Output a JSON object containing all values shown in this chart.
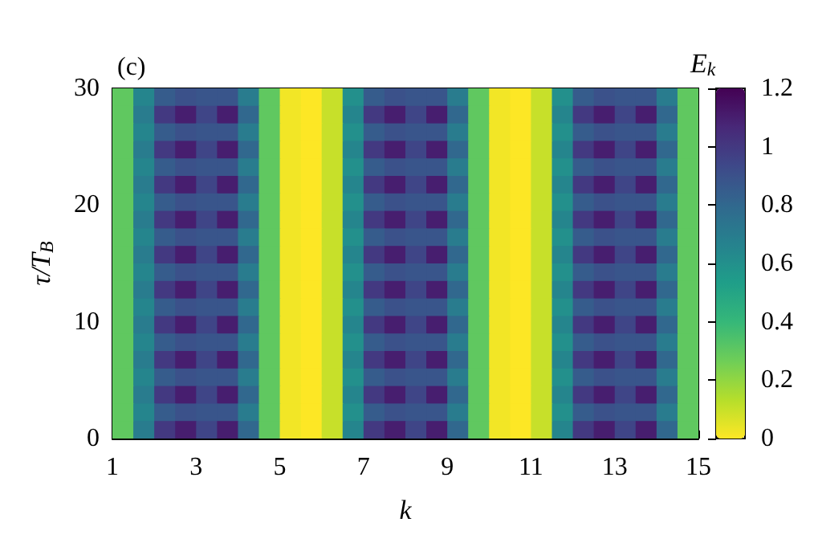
{
  "chart_data": {
    "type": "heatmap",
    "title": "(c)",
    "xlabel": "k",
    "ylabel": "τ/T$_{B}$",
    "clabel": "E$_{k}$",
    "xlim": [
      1,
      15
    ],
    "xticks": [
      1,
      3,
      5,
      7,
      9,
      11,
      13,
      15
    ],
    "ylim": [
      0,
      30
    ],
    "yticks": [
      0,
      10,
      20,
      30
    ],
    "clim": [
      0,
      1.2
    ],
    "cticks": [
      0,
      0.2,
      0.4,
      0.6,
      0.8,
      1,
      1.2
    ],
    "grid": false,
    "cells": [
      [
        0.3,
        0.65,
        0.85,
        0.9,
        0.88,
        0.88,
        0.7,
        0.3,
        0.02,
        0,
        0.1,
        0.6,
        0.85,
        0.9,
        0.88,
        0.88,
        0.7,
        0.3,
        0.02,
        0,
        0.1,
        0.6,
        0.85,
        0.9,
        0.88,
        0.88,
        0.7,
        0.3
      ],
      [
        0.3,
        0.7,
        1.0,
        1.1,
        0.95,
        1.1,
        0.8,
        0.3,
        0.02,
        0,
        0.1,
        0.65,
        1.0,
        1.1,
        0.95,
        1.1,
        0.8,
        0.3,
        0.02,
        0,
        0.1,
        0.65,
        1.0,
        1.1,
        0.95,
        1.1,
        0.8,
        0.3
      ],
      [
        0.3,
        0.65,
        0.85,
        0.9,
        0.88,
        0.88,
        0.7,
        0.3,
        0.02,
        0,
        0.1,
        0.6,
        0.85,
        0.9,
        0.88,
        0.88,
        0.7,
        0.3,
        0.02,
        0,
        0.1,
        0.6,
        0.85,
        0.9,
        0.88,
        0.88,
        0.7,
        0.3
      ],
      [
        0.3,
        0.7,
        1.0,
        1.1,
        0.95,
        1.1,
        0.8,
        0.3,
        0.02,
        0,
        0.1,
        0.65,
        1.0,
        1.1,
        0.95,
        1.1,
        0.8,
        0.3,
        0.02,
        0,
        0.1,
        0.65,
        1.0,
        1.1,
        0.95,
        1.1,
        0.8,
        0.3
      ],
      [
        0.3,
        0.65,
        0.85,
        0.9,
        0.88,
        0.88,
        0.7,
        0.3,
        0.02,
        0,
        0.1,
        0.6,
        0.85,
        0.9,
        0.88,
        0.88,
        0.7,
        0.3,
        0.02,
        0,
        0.1,
        0.6,
        0.85,
        0.9,
        0.88,
        0.88,
        0.7,
        0.3
      ],
      [
        0.3,
        0.7,
        1.0,
        1.1,
        0.95,
        1.1,
        0.8,
        0.3,
        0.02,
        0,
        0.1,
        0.65,
        1.0,
        1.1,
        0.95,
        1.1,
        0.8,
        0.3,
        0.02,
        0,
        0.1,
        0.65,
        1.0,
        1.1,
        0.95,
        1.1,
        0.8,
        0.3
      ],
      [
        0.3,
        0.65,
        0.85,
        0.9,
        0.88,
        0.88,
        0.7,
        0.3,
        0.02,
        0,
        0.1,
        0.6,
        0.85,
        0.9,
        0.88,
        0.88,
        0.7,
        0.3,
        0.02,
        0,
        0.1,
        0.6,
        0.85,
        0.9,
        0.88,
        0.88,
        0.7,
        0.3
      ],
      [
        0.3,
        0.7,
        1.0,
        1.1,
        0.95,
        1.1,
        0.8,
        0.3,
        0.02,
        0,
        0.1,
        0.65,
        1.0,
        1.1,
        0.95,
        1.1,
        0.8,
        0.3,
        0.02,
        0,
        0.1,
        0.65,
        1.0,
        1.1,
        0.95,
        1.1,
        0.8,
        0.3
      ],
      [
        0.3,
        0.65,
        0.85,
        0.9,
        0.88,
        0.88,
        0.7,
        0.3,
        0.02,
        0,
        0.1,
        0.6,
        0.85,
        0.9,
        0.88,
        0.88,
        0.7,
        0.3,
        0.02,
        0,
        0.1,
        0.6,
        0.85,
        0.9,
        0.88,
        0.88,
        0.7,
        0.3
      ],
      [
        0.3,
        0.7,
        1.0,
        1.1,
        0.95,
        1.1,
        0.8,
        0.3,
        0.02,
        0,
        0.1,
        0.65,
        1.0,
        1.1,
        0.95,
        1.1,
        0.8,
        0.3,
        0.02,
        0,
        0.1,
        0.65,
        1.0,
        1.1,
        0.95,
        1.1,
        0.8,
        0.3
      ],
      [
        0.3,
        0.65,
        0.85,
        0.9,
        0.88,
        0.88,
        0.7,
        0.3,
        0.02,
        0,
        0.1,
        0.6,
        0.85,
        0.9,
        0.88,
        0.88,
        0.7,
        0.3,
        0.02,
        0,
        0.1,
        0.6,
        0.85,
        0.9,
        0.88,
        0.88,
        0.7,
        0.3
      ],
      [
        0.3,
        0.7,
        1.0,
        1.1,
        0.95,
        1.1,
        0.8,
        0.3,
        0.02,
        0,
        0.1,
        0.65,
        1.0,
        1.1,
        0.95,
        1.1,
        0.8,
        0.3,
        0.02,
        0,
        0.1,
        0.65,
        1.0,
        1.1,
        0.95,
        1.1,
        0.8,
        0.3
      ],
      [
        0.3,
        0.65,
        0.85,
        0.9,
        0.88,
        0.88,
        0.7,
        0.3,
        0.02,
        0,
        0.1,
        0.6,
        0.85,
        0.9,
        0.88,
        0.88,
        0.7,
        0.3,
        0.02,
        0,
        0.1,
        0.6,
        0.85,
        0.9,
        0.88,
        0.88,
        0.7,
        0.3
      ],
      [
        0.3,
        0.7,
        1.0,
        1.1,
        0.95,
        1.1,
        0.8,
        0.3,
        0.02,
        0,
        0.1,
        0.65,
        1.0,
        1.1,
        0.95,
        1.1,
        0.8,
        0.3,
        0.02,
        0,
        0.1,
        0.65,
        1.0,
        1.1,
        0.95,
        1.1,
        0.8,
        0.3
      ],
      [
        0.3,
        0.65,
        0.85,
        0.9,
        0.88,
        0.88,
        0.7,
        0.3,
        0.02,
        0,
        0.1,
        0.6,
        0.85,
        0.9,
        0.88,
        0.88,
        0.7,
        0.3,
        0.02,
        0,
        0.1,
        0.6,
        0.85,
        0.9,
        0.88,
        0.88,
        0.7,
        0.3
      ],
      [
        0.3,
        0.7,
        1.0,
        1.1,
        0.95,
        1.1,
        0.8,
        0.3,
        0.02,
        0,
        0.1,
        0.65,
        1.0,
        1.1,
        0.95,
        1.1,
        0.8,
        0.3,
        0.02,
        0,
        0.1,
        0.65,
        1.0,
        1.1,
        0.95,
        1.1,
        0.8,
        0.3
      ],
      [
        0.3,
        0.65,
        0.85,
        0.9,
        0.88,
        0.88,
        0.7,
        0.3,
        0.02,
        0,
        0.1,
        0.6,
        0.85,
        0.9,
        0.88,
        0.88,
        0.7,
        0.3,
        0.02,
        0,
        0.1,
        0.6,
        0.85,
        0.9,
        0.88,
        0.88,
        0.7,
        0.3
      ],
      [
        0.3,
        0.7,
        1.0,
        1.1,
        0.95,
        1.1,
        0.8,
        0.3,
        0.02,
        0,
        0.1,
        0.65,
        1.0,
        1.1,
        0.95,
        1.1,
        0.8,
        0.3,
        0.02,
        0,
        0.1,
        0.65,
        1.0,
        1.1,
        0.95,
        1.1,
        0.8,
        0.3
      ],
      [
        0.3,
        0.65,
        0.85,
        0.9,
        0.88,
        0.88,
        0.7,
        0.3,
        0.02,
        0,
        0.1,
        0.6,
        0.85,
        0.9,
        0.88,
        0.88,
        0.7,
        0.3,
        0.02,
        0,
        0.1,
        0.6,
        0.85,
        0.9,
        0.88,
        0.88,
        0.7,
        0.3
      ],
      [
        0.3,
        0.7,
        1.0,
        1.1,
        0.95,
        1.1,
        0.8,
        0.3,
        0.02,
        0,
        0.1,
        0.65,
        1.0,
        1.1,
        0.95,
        1.1,
        0.8,
        0.3,
        0.02,
        0,
        0.1,
        0.65,
        1.0,
        1.1,
        0.95,
        1.1,
        0.8,
        0.3
      ]
    ]
  }
}
